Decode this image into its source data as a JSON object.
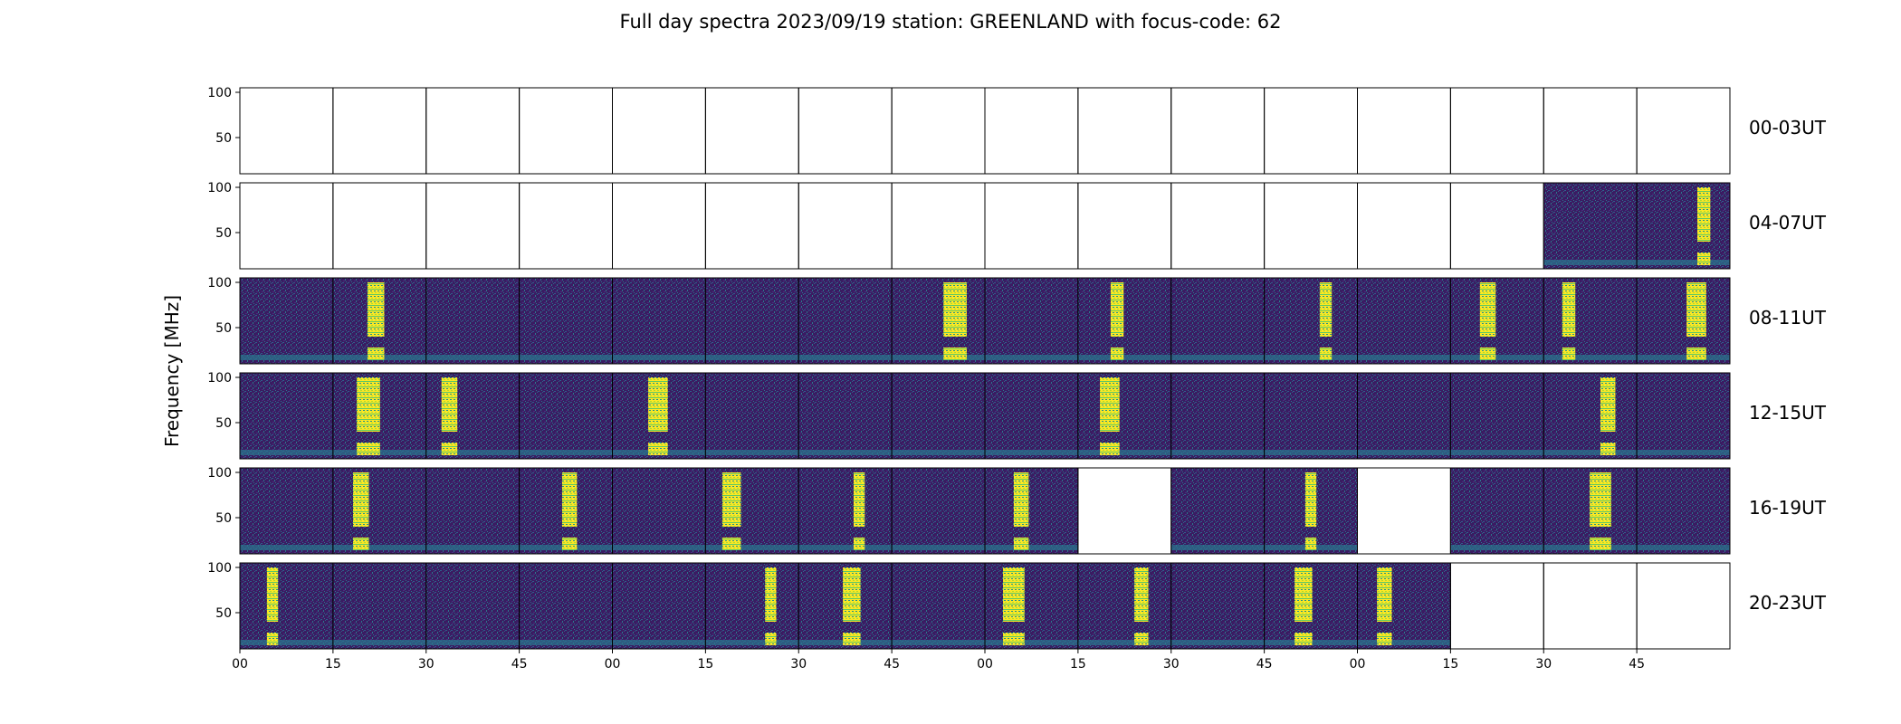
{
  "chart_data": {
    "type": "heatmap",
    "title": "Full day spectra 2023/09/19 station: GREENLAND with focus-code: 62",
    "ylabel": "Frequency [MHz]",
    "xlabel": "",
    "ylim": [
      10,
      105
    ],
    "yticks": [
      50,
      100
    ],
    "xtick_labels": [
      "00",
      "15",
      "30",
      "45",
      "00",
      "15",
      "30",
      "45",
      "00",
      "15",
      "30",
      "45",
      "00",
      "15",
      "30",
      "45"
    ],
    "row_labels": [
      "00-03UT",
      "04-07UT",
      "08-11UT",
      "12-15UT",
      "16-19UT",
      "20-23UT"
    ],
    "columns_per_row": 16,
    "minutes_per_panel": 15,
    "colormap": "viridis",
    "background_color": "#3b1d63",
    "burst_color": "#fde725",
    "panels": [
      [
        "empty",
        "empty",
        "empty",
        "empty",
        "empty",
        "empty",
        "empty",
        "empty",
        "empty",
        "empty",
        "empty",
        "empty",
        "empty",
        "empty",
        "empty",
        "empty"
      ],
      [
        "empty",
        "empty",
        "empty",
        "empty",
        "empty",
        "empty",
        "empty",
        "empty",
        "empty",
        "empty",
        "empty",
        "empty",
        "empty",
        "empty",
        "noise",
        "burst"
      ],
      [
        "noise",
        "burst",
        "noise",
        "noise",
        "noise",
        "noise",
        "noise",
        "burst",
        "noise",
        "burst",
        "noise",
        "burst",
        "noise",
        "burst",
        "burst",
        "burst"
      ],
      [
        "noise",
        "burst",
        "burst",
        "noise",
        "burst",
        "noise",
        "noise",
        "noise",
        "noise",
        "burst",
        "noise",
        "noise",
        "noise",
        "noise",
        "burst",
        "noise"
      ],
      [
        "noise",
        "burst",
        "noise",
        "burst",
        "noise",
        "burst",
        "burst",
        "noise",
        "burst",
        "empty",
        "noise",
        "burst",
        "empty",
        "noise",
        "burst",
        "noise"
      ],
      [
        "burst",
        "noise",
        "noise",
        "noise",
        "noise",
        "burst",
        "burst",
        "noise",
        "burst",
        "burst",
        "noise",
        "burst",
        "burst",
        "empty",
        "empty",
        "empty"
      ]
    ]
  }
}
